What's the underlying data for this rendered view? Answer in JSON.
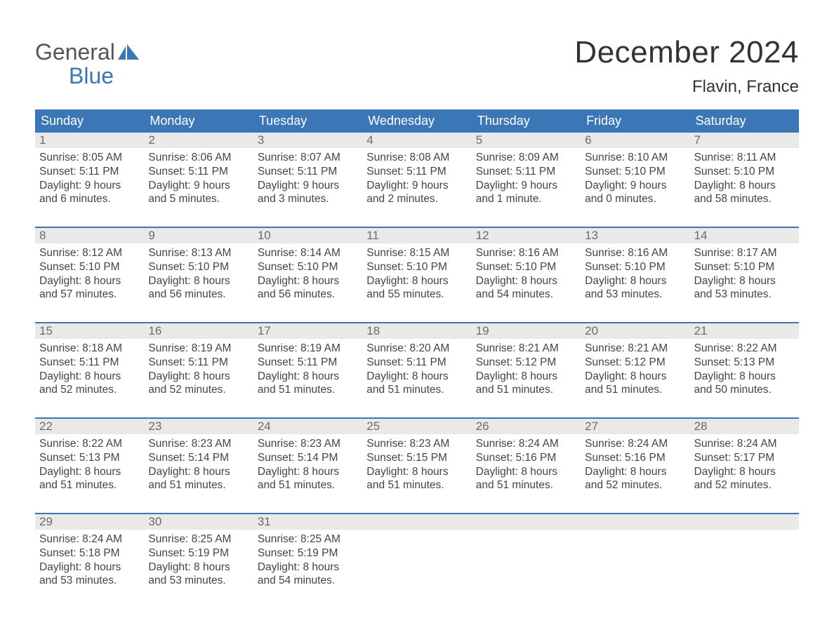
{
  "colors": {
    "header_bg": "#3b77b7",
    "daynum_bg": "#e9e9e9",
    "text": "#444444",
    "logo_blue": "#3b77b7"
  },
  "logo": {
    "line1": "General",
    "line2": "Blue"
  },
  "title": "December 2024",
  "subtitle": "Flavin, France",
  "day_headers": [
    "Sunday",
    "Monday",
    "Tuesday",
    "Wednesday",
    "Thursday",
    "Friday",
    "Saturday"
  ],
  "weeks": [
    [
      {
        "n": "1",
        "sunrise": "Sunrise: 8:05 AM",
        "sunset": "Sunset: 5:11 PM",
        "daylight1": "Daylight: 9 hours",
        "daylight2": "and 6 minutes."
      },
      {
        "n": "2",
        "sunrise": "Sunrise: 8:06 AM",
        "sunset": "Sunset: 5:11 PM",
        "daylight1": "Daylight: 9 hours",
        "daylight2": "and 5 minutes."
      },
      {
        "n": "3",
        "sunrise": "Sunrise: 8:07 AM",
        "sunset": "Sunset: 5:11 PM",
        "daylight1": "Daylight: 9 hours",
        "daylight2": "and 3 minutes."
      },
      {
        "n": "4",
        "sunrise": "Sunrise: 8:08 AM",
        "sunset": "Sunset: 5:11 PM",
        "daylight1": "Daylight: 9 hours",
        "daylight2": "and 2 minutes."
      },
      {
        "n": "5",
        "sunrise": "Sunrise: 8:09 AM",
        "sunset": "Sunset: 5:11 PM",
        "daylight1": "Daylight: 9 hours",
        "daylight2": "and 1 minute."
      },
      {
        "n": "6",
        "sunrise": "Sunrise: 8:10 AM",
        "sunset": "Sunset: 5:10 PM",
        "daylight1": "Daylight: 9 hours",
        "daylight2": "and 0 minutes."
      },
      {
        "n": "7",
        "sunrise": "Sunrise: 8:11 AM",
        "sunset": "Sunset: 5:10 PM",
        "daylight1": "Daylight: 8 hours",
        "daylight2": "and 58 minutes."
      }
    ],
    [
      {
        "n": "8",
        "sunrise": "Sunrise: 8:12 AM",
        "sunset": "Sunset: 5:10 PM",
        "daylight1": "Daylight: 8 hours",
        "daylight2": "and 57 minutes."
      },
      {
        "n": "9",
        "sunrise": "Sunrise: 8:13 AM",
        "sunset": "Sunset: 5:10 PM",
        "daylight1": "Daylight: 8 hours",
        "daylight2": "and 56 minutes."
      },
      {
        "n": "10",
        "sunrise": "Sunrise: 8:14 AM",
        "sunset": "Sunset: 5:10 PM",
        "daylight1": "Daylight: 8 hours",
        "daylight2": "and 56 minutes."
      },
      {
        "n": "11",
        "sunrise": "Sunrise: 8:15 AM",
        "sunset": "Sunset: 5:10 PM",
        "daylight1": "Daylight: 8 hours",
        "daylight2": "and 55 minutes."
      },
      {
        "n": "12",
        "sunrise": "Sunrise: 8:16 AM",
        "sunset": "Sunset: 5:10 PM",
        "daylight1": "Daylight: 8 hours",
        "daylight2": "and 54 minutes."
      },
      {
        "n": "13",
        "sunrise": "Sunrise: 8:16 AM",
        "sunset": "Sunset: 5:10 PM",
        "daylight1": "Daylight: 8 hours",
        "daylight2": "and 53 minutes."
      },
      {
        "n": "14",
        "sunrise": "Sunrise: 8:17 AM",
        "sunset": "Sunset: 5:10 PM",
        "daylight1": "Daylight: 8 hours",
        "daylight2": "and 53 minutes."
      }
    ],
    [
      {
        "n": "15",
        "sunrise": "Sunrise: 8:18 AM",
        "sunset": "Sunset: 5:11 PM",
        "daylight1": "Daylight: 8 hours",
        "daylight2": "and 52 minutes."
      },
      {
        "n": "16",
        "sunrise": "Sunrise: 8:19 AM",
        "sunset": "Sunset: 5:11 PM",
        "daylight1": "Daylight: 8 hours",
        "daylight2": "and 52 minutes."
      },
      {
        "n": "17",
        "sunrise": "Sunrise: 8:19 AM",
        "sunset": "Sunset: 5:11 PM",
        "daylight1": "Daylight: 8 hours",
        "daylight2": "and 51 minutes."
      },
      {
        "n": "18",
        "sunrise": "Sunrise: 8:20 AM",
        "sunset": "Sunset: 5:11 PM",
        "daylight1": "Daylight: 8 hours",
        "daylight2": "and 51 minutes."
      },
      {
        "n": "19",
        "sunrise": "Sunrise: 8:21 AM",
        "sunset": "Sunset: 5:12 PM",
        "daylight1": "Daylight: 8 hours",
        "daylight2": "and 51 minutes."
      },
      {
        "n": "20",
        "sunrise": "Sunrise: 8:21 AM",
        "sunset": "Sunset: 5:12 PM",
        "daylight1": "Daylight: 8 hours",
        "daylight2": "and 51 minutes."
      },
      {
        "n": "21",
        "sunrise": "Sunrise: 8:22 AM",
        "sunset": "Sunset: 5:13 PM",
        "daylight1": "Daylight: 8 hours",
        "daylight2": "and 50 minutes."
      }
    ],
    [
      {
        "n": "22",
        "sunrise": "Sunrise: 8:22 AM",
        "sunset": "Sunset: 5:13 PM",
        "daylight1": "Daylight: 8 hours",
        "daylight2": "and 51 minutes."
      },
      {
        "n": "23",
        "sunrise": "Sunrise: 8:23 AM",
        "sunset": "Sunset: 5:14 PM",
        "daylight1": "Daylight: 8 hours",
        "daylight2": "and 51 minutes."
      },
      {
        "n": "24",
        "sunrise": "Sunrise: 8:23 AM",
        "sunset": "Sunset: 5:14 PM",
        "daylight1": "Daylight: 8 hours",
        "daylight2": "and 51 minutes."
      },
      {
        "n": "25",
        "sunrise": "Sunrise: 8:23 AM",
        "sunset": "Sunset: 5:15 PM",
        "daylight1": "Daylight: 8 hours",
        "daylight2": "and 51 minutes."
      },
      {
        "n": "26",
        "sunrise": "Sunrise: 8:24 AM",
        "sunset": "Sunset: 5:16 PM",
        "daylight1": "Daylight: 8 hours",
        "daylight2": "and 51 minutes."
      },
      {
        "n": "27",
        "sunrise": "Sunrise: 8:24 AM",
        "sunset": "Sunset: 5:16 PM",
        "daylight1": "Daylight: 8 hours",
        "daylight2": "and 52 minutes."
      },
      {
        "n": "28",
        "sunrise": "Sunrise: 8:24 AM",
        "sunset": "Sunset: 5:17 PM",
        "daylight1": "Daylight: 8 hours",
        "daylight2": "and 52 minutes."
      }
    ],
    [
      {
        "n": "29",
        "sunrise": "Sunrise: 8:24 AM",
        "sunset": "Sunset: 5:18 PM",
        "daylight1": "Daylight: 8 hours",
        "daylight2": "and 53 minutes."
      },
      {
        "n": "30",
        "sunrise": "Sunrise: 8:25 AM",
        "sunset": "Sunset: 5:19 PM",
        "daylight1": "Daylight: 8 hours",
        "daylight2": "and 53 minutes."
      },
      {
        "n": "31",
        "sunrise": "Sunrise: 8:25 AM",
        "sunset": "Sunset: 5:19 PM",
        "daylight1": "Daylight: 8 hours",
        "daylight2": "and 54 minutes."
      },
      {
        "empty": true
      },
      {
        "empty": true
      },
      {
        "empty": true
      },
      {
        "empty": true
      }
    ]
  ]
}
